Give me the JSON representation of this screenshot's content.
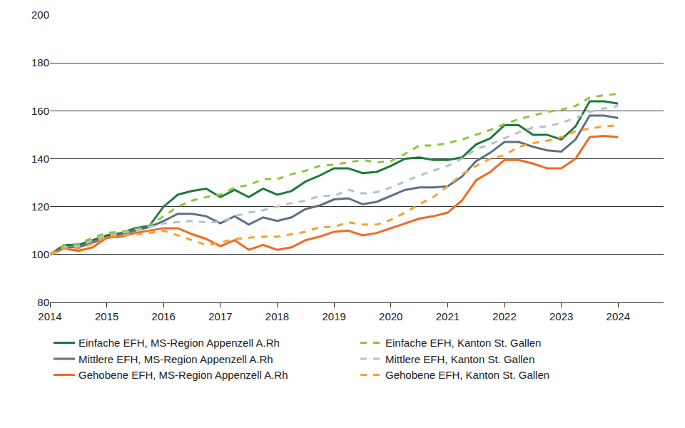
{
  "chart_data": {
    "type": "line",
    "x": [
      2014,
      2014.25,
      2014.5,
      2014.75,
      2015,
      2015.25,
      2015.5,
      2015.75,
      2016,
      2016.25,
      2016.5,
      2016.75,
      2017,
      2017.25,
      2017.5,
      2017.75,
      2018,
      2018.25,
      2018.5,
      2018.75,
      2019,
      2019.25,
      2019.5,
      2019.75,
      2020,
      2020.25,
      2020.5,
      2020.75,
      2021,
      2021.25,
      2021.5,
      2021.75,
      2022,
      2022.25,
      2022.5,
      2022.75,
      2023,
      2023.25,
      2023.5,
      2023.75,
      2024
    ],
    "xlim": [
      2014,
      2024.8
    ],
    "xticks": [
      2014,
      2015,
      2016,
      2017,
      2018,
      2019,
      2020,
      2021,
      2022,
      2023,
      2024
    ],
    "ylim": [
      80,
      200
    ],
    "yticks": [
      80,
      100,
      120,
      140,
      160,
      180,
      200
    ],
    "grid": true,
    "legend": "bottom",
    "series": [
      {
        "name": "Einfache EFH, MS-Region Appenzell A.Rh",
        "color": "#1e7a3c",
        "line_style": "solid",
        "values": [
          100,
          104,
          104,
          106,
          108,
          109,
          111,
          112,
          120,
          125,
          126.5,
          127.5,
          124,
          127,
          124,
          127.5,
          125,
          126.5,
          130.5,
          133,
          136,
          136,
          134,
          134.5,
          137,
          140,
          140.5,
          139.5,
          139.5,
          140.5,
          146,
          148.5,
          154,
          154,
          150,
          150,
          148,
          153.5,
          164,
          164,
          163
        ]
      },
      {
        "name": "Einfache EFH, Kanton St. Gallen",
        "color": "#8cc63f",
        "line_style": "dash",
        "values": [
          100,
          104,
          104.5,
          107,
          109,
          109.5,
          110.5,
          112,
          116,
          120,
          122.5,
          124,
          125,
          128,
          129,
          131.5,
          131.5,
          133.5,
          135,
          137,
          137.5,
          138.5,
          139.5,
          138.5,
          139,
          142,
          145.5,
          145.5,
          146.5,
          148,
          150,
          152,
          154.5,
          156.5,
          158,
          159.5,
          160.5,
          162,
          165.5,
          166.5,
          167
        ]
      },
      {
        "name": "Mittlere EFH, MS-Region Appenzell A.Rh",
        "color": "#5f6f82",
        "line_style": "solid",
        "values": [
          100,
          103,
          103,
          105,
          107,
          108.5,
          110,
          111.5,
          114,
          117,
          117,
          116,
          113,
          116,
          112.5,
          115.5,
          114,
          115.5,
          119,
          120.5,
          123,
          123.5,
          121,
          122,
          124.5,
          127,
          128,
          128,
          128.5,
          132.5,
          139,
          142.5,
          147,
          147,
          145,
          143.5,
          143,
          148,
          158,
          158,
          157
        ]
      },
      {
        "name": "Mittlere EFH, Kanton St. Gallen",
        "color": "#b8bfca",
        "line_style": "dash",
        "values": [
          100,
          103,
          103.5,
          106,
          108,
          109,
          110,
          111.5,
          113,
          113.5,
          114,
          113.5,
          113.5,
          116,
          117.5,
          118.5,
          120,
          121.5,
          122.5,
          124.5,
          124.5,
          127,
          125.5,
          126,
          128,
          130.5,
          133,
          135,
          137,
          140,
          144,
          146,
          148.5,
          151,
          153,
          153.5,
          155,
          157,
          159.5,
          161,
          162
        ]
      },
      {
        "name": "Gehobene EFH, MS-Region Appenzell A.Rh",
        "color": "#f06a22",
        "line_style": "solid",
        "values": [
          100,
          102.5,
          101.5,
          103,
          107,
          107.5,
          109,
          110,
          111,
          111,
          108.5,
          106.5,
          103.5,
          106,
          102,
          104,
          102,
          103,
          106,
          107.5,
          109.5,
          110,
          108,
          109,
          111,
          113,
          115,
          116,
          117.5,
          122.5,
          131,
          134.5,
          139.5,
          139.5,
          138,
          136,
          136,
          140,
          149,
          149.5,
          149
        ]
      },
      {
        "name": "Gehobene EFH, Kanton St. Gallen",
        "color": "#f7a02e",
        "line_style": "dash",
        "values": [
          100,
          102.5,
          102.5,
          104.5,
          107.5,
          108,
          108.5,
          109,
          110,
          108,
          106,
          104,
          105,
          106.5,
          107,
          107.5,
          107.5,
          108.5,
          109.5,
          111.5,
          111.5,
          113.5,
          112.5,
          112.5,
          114.5,
          117.5,
          121,
          124,
          128.5,
          133.5,
          137,
          140,
          141.5,
          145,
          146.5,
          147.5,
          149,
          151.5,
          152.5,
          153.5,
          154
        ]
      }
    ]
  }
}
